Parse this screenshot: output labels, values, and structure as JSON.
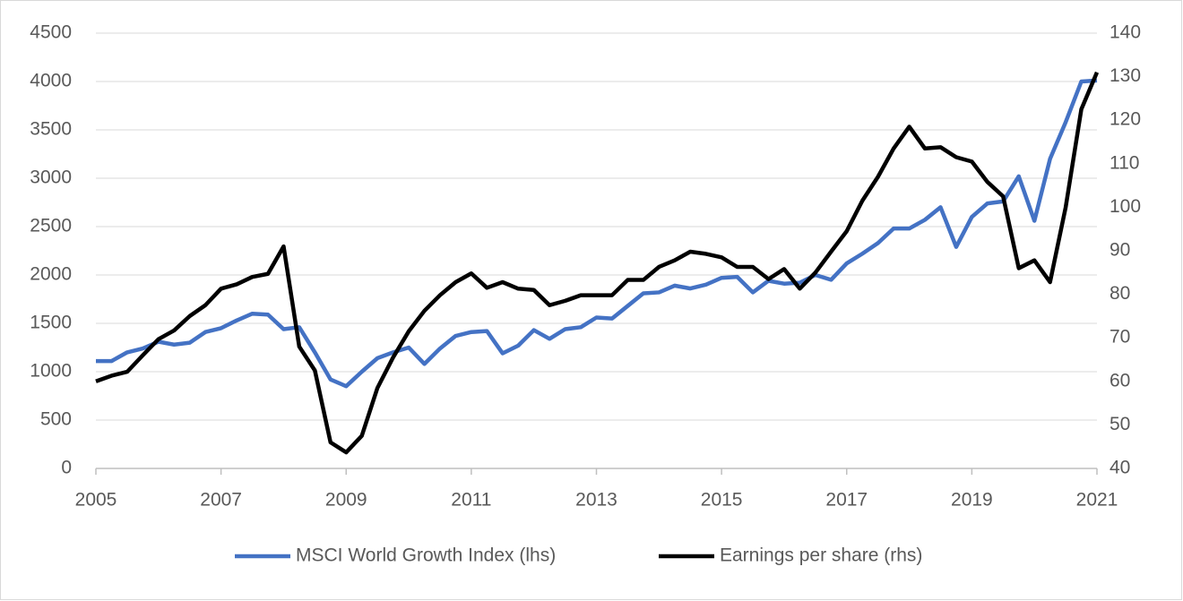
{
  "chart_data": {
    "type": "line",
    "xlim": [
      2005,
      2021
    ],
    "xticks": [
      2005,
      2007,
      2009,
      2011,
      2013,
      2015,
      2017,
      2019,
      2021
    ],
    "ylim": [
      0,
      4500
    ],
    "yticks": [
      0,
      500,
      1000,
      1500,
      2000,
      2500,
      3000,
      3500,
      4000,
      4500
    ],
    "y2lim": [
      40,
      140
    ],
    "y2ticks": [
      40,
      50,
      60,
      70,
      80,
      90,
      100,
      110,
      120,
      130,
      140
    ],
    "grid": true,
    "legend": "bottom",
    "x": [
      2005,
      2005.25,
      2005.5,
      2005.75,
      2006,
      2006.25,
      2006.5,
      2006.75,
      2007,
      2007.25,
      2007.5,
      2007.75,
      2008,
      2008.25,
      2008.5,
      2008.75,
      2009,
      2009.25,
      2009.5,
      2009.75,
      2010,
      2010.25,
      2010.5,
      2010.75,
      2011,
      2011.25,
      2011.5,
      2011.75,
      2012,
      2012.25,
      2012.5,
      2012.75,
      2013,
      2013.25,
      2013.5,
      2013.75,
      2014,
      2014.25,
      2014.5,
      2014.75,
      2015,
      2015.25,
      2015.5,
      2015.75,
      2016,
      2016.25,
      2016.5,
      2016.75,
      2017,
      2017.25,
      2017.5,
      2017.75,
      2018,
      2018.25,
      2018.5,
      2018.75,
      2019,
      2019.25,
      2019.5,
      2019.75,
      2020,
      2020.25,
      2020.5,
      2020.75,
      2021
    ],
    "series": [
      {
        "name": "MSCI World Growth Index (lhs)",
        "color": "#4472c4",
        "axis": "y",
        "values": [
          1110,
          1110,
          1200,
          1240,
          1310,
          1280,
          1300,
          1410,
          1450,
          1530,
          1600,
          1590,
          1440,
          1460,
          1200,
          920,
          850,
          1000,
          1140,
          1200,
          1250,
          1080,
          1240,
          1370,
          1410,
          1420,
          1190,
          1270,
          1430,
          1340,
          1440,
          1460,
          1560,
          1550,
          1680,
          1810,
          1820,
          1890,
          1860,
          1900,
          1970,
          1980,
          1820,
          1940,
          1910,
          1920,
          2000,
          1950,
          2120,
          2220,
          2330,
          2480,
          2480,
          2570,
          2700,
          2290,
          2600,
          2740,
          2760,
          3020,
          2560,
          3200,
          3580,
          4000,
          4010
        ]
      },
      {
        "name": "Earnings per share (rhs)",
        "color": "#000000",
        "axis": "y2",
        "values": [
          60,
          61.3,
          62.2,
          66,
          69.7,
          71.7,
          75,
          77.5,
          81.3,
          82.3,
          84,
          84.7,
          91,
          68,
          62.5,
          46,
          43.7,
          47.5,
          58.5,
          65.5,
          71.5,
          76.2,
          79.8,
          82.8,
          84.8,
          81.5,
          82.8,
          81.3,
          81,
          77.5,
          78.5,
          79.8,
          79.8,
          79.8,
          83.3,
          83.3,
          86.3,
          87.8,
          89.8,
          89.3,
          88.5,
          86.3,
          86.3,
          83.5,
          85.8,
          81.3,
          85,
          89.8,
          94.5,
          101.5,
          107,
          113.5,
          118.5,
          113.5,
          113.8,
          111.5,
          110.5,
          105.8,
          102.5,
          86,
          87.8,
          82.8,
          100,
          122.5,
          131
        ]
      }
    ]
  }
}
